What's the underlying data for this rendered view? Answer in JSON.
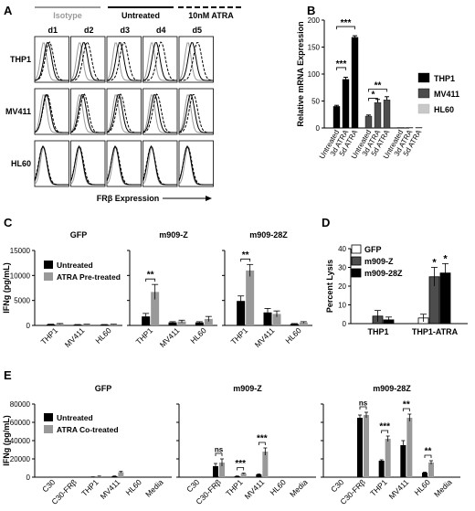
{
  "panels": {
    "A": {
      "letter": "A"
    },
    "B": {
      "letter": "B"
    },
    "C": {
      "letter": "C"
    },
    "D": {
      "letter": "D"
    },
    "E": {
      "letter": "E"
    }
  },
  "colors": {
    "black": "#000000",
    "darkgray": "#4d4d4d",
    "gray": "#999999",
    "lightgray": "#c8c8c8",
    "isotype": "#9a9a9a"
  },
  "chart_data": [
    {
      "id": "A",
      "type": "histogram-grid",
      "legend": [
        "Isotype",
        "Untreated",
        "10nM ATRA"
      ],
      "columns": [
        "d1",
        "d2",
        "d3",
        "d4",
        "d5"
      ],
      "rows": [
        "THP1",
        "MV411",
        "HL60"
      ],
      "xlabel": "FRβ Expression",
      "atra_shift": [
        [
          0.05,
          0.1,
          0.12,
          0.15,
          0.16
        ],
        [
          0.02,
          0.05,
          0.06,
          0.07,
          0.08
        ],
        [
          0.0,
          0.01,
          0.01,
          0.0,
          0.01
        ]
      ],
      "untreated_pos": [
        0.38,
        0.34,
        0.24
      ],
      "isotype_pos": 0.26
    },
    {
      "id": "B",
      "type": "bar",
      "ylabel": "Relative mRNA Expression",
      "ylim": [
        0,
        200
      ],
      "yticks": [
        0,
        50,
        100,
        150,
        200
      ],
      "groups": [
        {
          "name": "THP1",
          "categories": [
            "Untreated",
            "3d ATRA",
            "5d ATRA"
          ],
          "values": [
            40,
            90,
            168
          ],
          "errors": [
            2,
            4,
            3
          ]
        },
        {
          "name": "MV411",
          "categories": [
            "Untreated",
            "3d ATRA",
            "5d ATRA"
          ],
          "values": [
            22,
            47,
            52
          ],
          "errors": [
            2,
            6,
            6
          ]
        },
        {
          "name": "HL60",
          "categories": [
            "Untreated",
            "3d ATRA",
            "5d ATRA"
          ],
          "values": [
            1,
            1,
            1
          ],
          "errors": [
            0,
            0,
            0
          ]
        }
      ],
      "legend": [
        "THP1",
        "MV411",
        "HL60"
      ],
      "significance": [
        {
          "from": 0,
          "to": 1,
          "label": "***"
        },
        {
          "from": 0,
          "to": 2,
          "label": "***"
        },
        {
          "from": 3,
          "to": 4,
          "label": "*"
        },
        {
          "from": 3,
          "to": 5,
          "label": "**"
        }
      ]
    },
    {
      "id": "C",
      "type": "bar",
      "ylabel": "IFNg (pg/mL)",
      "ylim": [
        0,
        15000
      ],
      "yticks": [
        0,
        5000,
        10000,
        15000
      ],
      "legend": [
        "Untreated",
        "ATRA Pre-treated"
      ],
      "subpanels": [
        {
          "title": "GFP",
          "categories": [
            "THP1",
            "MV411",
            "HL60"
          ],
          "untreated": [
            200,
            150,
            150
          ],
          "treated": [
            300,
            200,
            200
          ],
          "u_err": [
            50,
            30,
            30
          ],
          "t_err": [
            80,
            40,
            40
          ],
          "sig": []
        },
        {
          "title": "m909-Z",
          "categories": [
            "THP1",
            "MV411",
            "HL60"
          ],
          "untreated": [
            1800,
            600,
            600
          ],
          "treated": [
            6700,
            800,
            1300
          ],
          "u_err": [
            600,
            150,
            150
          ],
          "t_err": [
            1500,
            250,
            500
          ],
          "sig": [
            {
              "cat": 0,
              "label": "**"
            }
          ]
        },
        {
          "title": "m909-28Z",
          "categories": [
            "THP1",
            "MV411",
            "HL60"
          ],
          "untreated": [
            4900,
            2600,
            300
          ],
          "treated": [
            11000,
            2300,
            600
          ],
          "u_err": [
            1000,
            800,
            80
          ],
          "t_err": [
            1200,
            600,
            150
          ],
          "sig": [
            {
              "cat": 0,
              "label": "**"
            }
          ]
        }
      ]
    },
    {
      "id": "D",
      "type": "bar",
      "ylabel": "Percent Lysis",
      "ylim": [
        0,
        40
      ],
      "yticks": [
        0,
        10,
        20,
        30,
        40
      ],
      "legend": [
        "GFP",
        "m909-Z",
        "m909-28Z"
      ],
      "categories": [
        "THP1",
        "THP1-ATRA"
      ],
      "series": [
        {
          "name": "GFP",
          "values": [
            0,
            3
          ],
          "errors": [
            0,
            2
          ]
        },
        {
          "name": "m909-Z",
          "values": [
            4,
            25
          ],
          "errors": [
            3,
            5
          ]
        },
        {
          "name": "m909-28Z",
          "values": [
            2,
            27
          ],
          "errors": [
            1.5,
            5
          ]
        }
      ],
      "significance": [
        {
          "cat": 1,
          "series": 1,
          "label": "*"
        },
        {
          "cat": 1,
          "series": 2,
          "label": "*"
        }
      ]
    },
    {
      "id": "E",
      "type": "bar",
      "ylabel": "IFNg (pg/mL)",
      "ylim": [
        0,
        80000
      ],
      "yticks": [
        0,
        20000,
        40000,
        60000,
        80000
      ],
      "legend": [
        "Untreated",
        "ATRA Co-treated"
      ],
      "subpanels": [
        {
          "title": "GFP",
          "categories": [
            "C30",
            "C30-FRβ",
            "THP1",
            "MV411",
            "HL60",
            "Media"
          ],
          "untreated": [
            0,
            0,
            300,
            1000,
            0,
            0
          ],
          "treated": [
            0,
            0,
            1000,
            5500,
            0,
            0
          ],
          "u_err": [
            0,
            0,
            100,
            300,
            0,
            0
          ],
          "t_err": [
            0,
            0,
            200,
            800,
            0,
            0
          ],
          "sig": []
        },
        {
          "title": "m909-Z",
          "categories": [
            "C30",
            "C30-FRβ",
            "THP1",
            "MV411",
            "HL60",
            "Media"
          ],
          "untreated": [
            0,
            12000,
            1000,
            3000,
            0,
            0
          ],
          "treated": [
            0,
            16000,
            4000,
            28000,
            0,
            0
          ],
          "u_err": [
            0,
            3000,
            300,
            500,
            0,
            0
          ],
          "t_err": [
            0,
            4000,
            500,
            4000,
            0,
            0
          ],
          "sig": [
            {
              "cat": 1,
              "label": "ns"
            },
            {
              "cat": 2,
              "label": "***"
            },
            {
              "cat": 3,
              "label": "***"
            }
          ]
        },
        {
          "title": "m909-28Z",
          "categories": [
            "C30",
            "C30-FRβ",
            "THP1",
            "MV411",
            "HL60",
            "Media"
          ],
          "untreated": [
            0,
            65000,
            18000,
            35000,
            5000,
            0
          ],
          "treated": [
            0,
            68000,
            42000,
            65000,
            16000,
            0
          ],
          "u_err": [
            0,
            3000,
            1000,
            5000,
            500,
            0
          ],
          "t_err": [
            0,
            3000,
            3000,
            4000,
            2000,
            0
          ],
          "sig": [
            {
              "cat": 1,
              "label": "ns"
            },
            {
              "cat": 2,
              "label": "***"
            },
            {
              "cat": 3,
              "label": "**"
            },
            {
              "cat": 4,
              "label": "**"
            }
          ]
        }
      ]
    }
  ]
}
